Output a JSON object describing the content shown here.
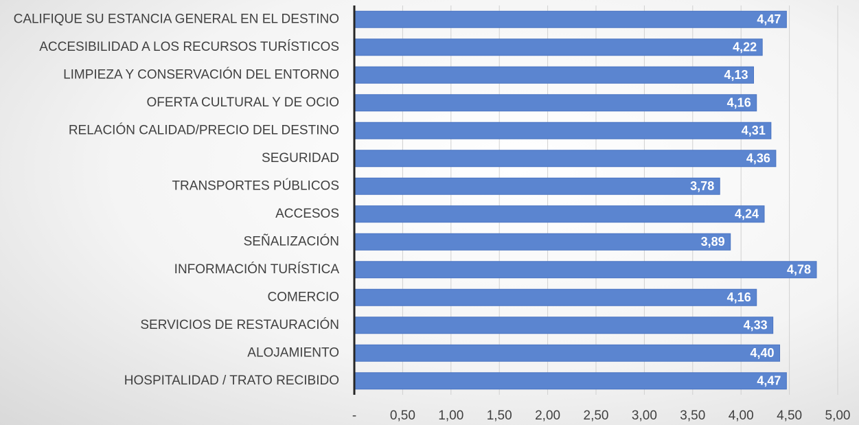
{
  "chart_data": {
    "type": "barh",
    "categories": [
      "CALIFIQUE SU ESTANCIA GENERAL EN EL DESTINO",
      "ACCESIBILIDAD A LOS RECURSOS TURÍSTICOS",
      "LIMPIEZA Y CONSERVACIÓN DEL ENTORNO",
      "OFERTA CULTURAL Y DE OCIO",
      "RELACIÓN CALIDAD/PRECIO DEL DESTINO",
      "SEGURIDAD",
      "TRANSPORTES PÚBLICOS",
      "ACCESOS",
      "SEÑALIZACIÓN",
      "INFORMACIÓN TURÍSTICA",
      "COMERCIO",
      "SERVICIOS DE RESTAURACIÓN",
      "ALOJAMIENTO",
      "HOSPITALIDAD / TRATO RECIBIDO"
    ],
    "values": [
      4.47,
      4.22,
      4.13,
      4.16,
      4.31,
      4.36,
      3.78,
      4.24,
      3.89,
      4.78,
      4.16,
      4.33,
      4.4,
      4.47
    ],
    "value_labels": [
      "4,47",
      "4,22",
      "4,13",
      "4,16",
      "4,31",
      "4,36",
      "3,78",
      "4,24",
      "3,89",
      "4,78",
      "4,16",
      "4,33",
      "4,40",
      "4,47"
    ],
    "color": "#5b85d0",
    "xlim": [
      0,
      5
    ],
    "xticks": [
      {
        "value": 0,
        "label": "-"
      },
      {
        "value": 0.5,
        "label": "0,50"
      },
      {
        "value": 1,
        "label": "1,00"
      },
      {
        "value": 1.5,
        "label": "1,50"
      },
      {
        "value": 2,
        "label": "2,00"
      },
      {
        "value": 2.5,
        "label": "2,50"
      },
      {
        "value": 3,
        "label": "3,00"
      },
      {
        "value": 3.5,
        "label": "3,50"
      },
      {
        "value": 4,
        "label": "4,00"
      },
      {
        "value": 4.5,
        "label": "4,50"
      },
      {
        "value": 5,
        "label": "5,00"
      }
    ],
    "grid": true
  }
}
